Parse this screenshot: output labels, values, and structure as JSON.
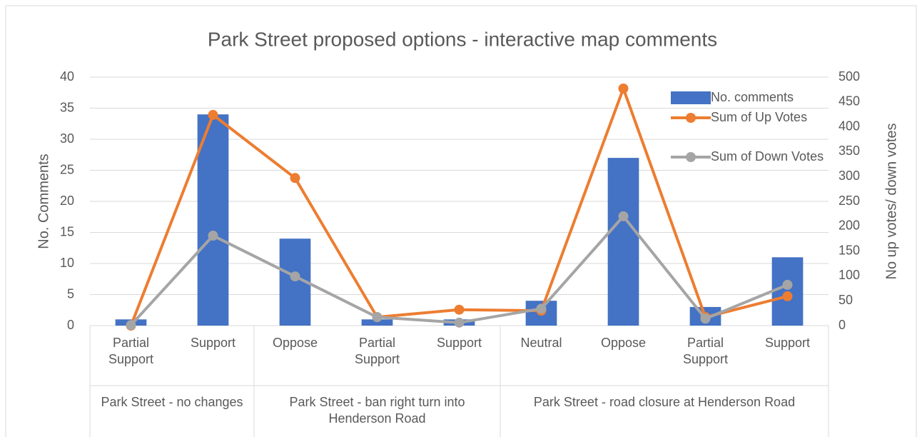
{
  "chart_data": {
    "type": "bar-line",
    "title": "Park Street proposed options - interactive map comments",
    "y_label": "No. Comments",
    "y2_label": "No up votes/ down votes",
    "groups": [
      {
        "label": "Park Street - no changes",
        "categories": [
          "Partial Support",
          "Support"
        ]
      },
      {
        "label": "Park Street - ban right turn into Henderson Road",
        "categories": [
          "Oppose",
          "Partial Support",
          "Support"
        ]
      },
      {
        "label": "Park Street - road closure at Henderson Road",
        "categories": [
          "Neutral",
          "Oppose",
          "Partial Support",
          "Support"
        ]
      }
    ],
    "series": [
      {
        "name": "No. comments",
        "type": "bar",
        "color": "#4472c4",
        "values": [
          1,
          34,
          14,
          1,
          1,
          4,
          27,
          3,
          11
        ]
      },
      {
        "name": "Sum of Up Votes",
        "type": "line",
        "axis": "y2",
        "color": "#ed7d31",
        "values": [
          0,
          424,
          297,
          17,
          32,
          30,
          477,
          17,
          59
        ]
      },
      {
        "name": "Sum of Down Votes",
        "type": "line",
        "axis": "y2",
        "color": "#a5a5a5",
        "values": [
          1,
          181,
          99,
          17,
          6,
          34,
          220,
          14,
          82
        ]
      }
    ],
    "ylim": [
      0,
      40
    ],
    "yticks": [
      0,
      5,
      10,
      15,
      20,
      25,
      30,
      35,
      40
    ],
    "y2lim": [
      0,
      500
    ],
    "y2ticks": [
      0,
      50,
      100,
      150,
      200,
      250,
      300,
      350,
      400,
      450,
      500
    ],
    "grid": true,
    "legend": "upper right"
  }
}
